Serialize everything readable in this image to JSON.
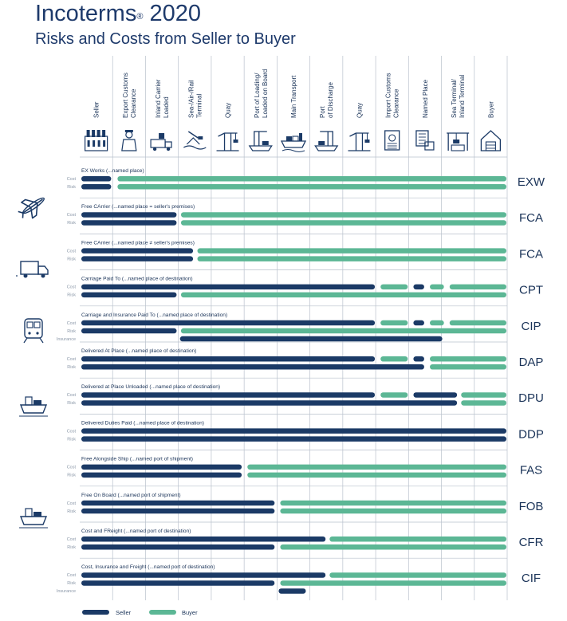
{
  "header": {
    "title": "Incoterms",
    "title_mark": "®",
    "title_year": "2020",
    "subtitle": "Risks and Costs from Seller to Buyer"
  },
  "colors": {
    "seller": "#1b3a66",
    "buyer": "#5cb795",
    "rule": "#b9c1cc",
    "text": "#1a3358"
  },
  "columns": [
    {
      "label": [
        "Seller"
      ],
      "icon": "factory-icon"
    },
    {
      "label": [
        "Export Customs",
        "Clearance"
      ],
      "icon": "customs-officer-icon"
    },
    {
      "label": [
        "Inland Carrier",
        "Loaded"
      ],
      "icon": "loading-truck-icon"
    },
    {
      "label": [
        "Sea-/Air-/Rail",
        "Terminal"
      ],
      "icon": "terminal-icon"
    },
    {
      "label": [
        "Quay"
      ],
      "icon": "port-crane-icon"
    },
    {
      "label": [
        "Port of Loading/",
        "Loaded on Board"
      ],
      "icon": "crane-ship-icon"
    },
    {
      "label": [
        "Main Transport"
      ],
      "icon": "cargo-ship-icon"
    },
    {
      "label": [
        "Port",
        "of Discharge"
      ],
      "icon": "port-discharge-icon"
    },
    {
      "label": [
        "Quay"
      ],
      "icon": "port-crane-icon"
    },
    {
      "label": [
        "Import Customs",
        "Clearance"
      ],
      "icon": "customs-document-icon"
    },
    {
      "label": [
        "Named Place"
      ],
      "icon": "checklist-icon"
    },
    {
      "label": [
        "Sea Terminal/",
        "Inland Terminal"
      ],
      "icon": "inland-terminal-icon"
    },
    {
      "label": [
        "Buyer"
      ],
      "icon": "warehouse-icon"
    }
  ],
  "side_labels": {
    "cost": "Cost",
    "risk": "Risk",
    "insurance": "Insurance"
  },
  "terms": [
    {
      "code": "EXW",
      "description": "EX Works (...named place)",
      "bars": [
        {
          "kind": "cost",
          "segments": [
            [
              "seller",
              0,
              0.98
            ],
            [
              "buyer",
              1.1,
              13
            ]
          ]
        },
        {
          "kind": "risk",
          "segments": [
            [
              "seller",
              0,
              0.98
            ],
            [
              "buyer",
              1.1,
              13
            ]
          ]
        }
      ]
    },
    {
      "code": "FCA",
      "description": "Free CArrier (...named place = seller's premises)",
      "bars": [
        {
          "kind": "cost",
          "segments": [
            [
              "seller",
              0,
              2.97
            ],
            [
              "buyer",
              3.03,
              13
            ]
          ]
        },
        {
          "kind": "risk",
          "segments": [
            [
              "seller",
              0,
              2.97
            ],
            [
              "buyer",
              3.03,
              13
            ]
          ]
        }
      ]
    },
    {
      "code": "FCA",
      "description": "Free CArrier (...named place ≠ seller's premises)",
      "bars": [
        {
          "kind": "cost",
          "segments": [
            [
              "seller",
              0,
              3.47
            ],
            [
              "buyer",
              3.53,
              13
            ]
          ]
        },
        {
          "kind": "risk",
          "segments": [
            [
              "seller",
              0,
              3.47
            ],
            [
              "buyer",
              3.53,
              13
            ]
          ]
        }
      ]
    },
    {
      "code": "CPT",
      "description": "Carriage Paid To (...named place of destination)",
      "bars": [
        {
          "kind": "cost",
          "segments": [
            [
              "seller",
              0,
              9
            ],
            [
              "buyer",
              9.1,
              10
            ],
            [
              "seller",
              10.1,
              10.5
            ],
            [
              "buyer",
              10.6,
              11.1
            ],
            [
              "buyer",
              11.2,
              13
            ]
          ]
        },
        {
          "kind": "risk",
          "segments": [
            [
              "seller",
              0,
              2.97
            ],
            [
              "buyer",
              3.03,
              13
            ]
          ]
        }
      ]
    },
    {
      "code": "CIP",
      "description": "Carriage and Insurance Paid To (...named place of destination)",
      "bars": [
        {
          "kind": "cost",
          "segments": [
            [
              "seller",
              0,
              9
            ],
            [
              "buyer",
              9.1,
              10
            ],
            [
              "seller",
              10.1,
              10.5
            ],
            [
              "buyer",
              10.6,
              11.1
            ],
            [
              "buyer",
              11.2,
              13
            ]
          ]
        },
        {
          "kind": "risk",
          "segments": [
            [
              "seller",
              0,
              2.97
            ],
            [
              "buyer",
              3.03,
              13
            ]
          ]
        },
        {
          "kind": "insurance",
          "segments": [
            [
              "seller",
              3,
              11.05
            ]
          ]
        }
      ]
    },
    {
      "code": "DAP",
      "description": "Delivered At Place (...named place of destination)",
      "bars": [
        {
          "kind": "cost",
          "segments": [
            [
              "seller",
              0,
              9
            ],
            [
              "buyer",
              9.1,
              10
            ],
            [
              "seller",
              10.1,
              10.5
            ],
            [
              "buyer",
              10.6,
              13
            ]
          ]
        },
        {
          "kind": "risk",
          "segments": [
            [
              "seller",
              0,
              10.5
            ],
            [
              "buyer",
              10.6,
              13
            ]
          ]
        }
      ]
    },
    {
      "code": "DPU",
      "description": "Delivered at Place Unloaded (...named place of destination)",
      "bars": [
        {
          "kind": "cost",
          "segments": [
            [
              "seller",
              0,
              9
            ],
            [
              "buyer",
              9.1,
              10
            ],
            [
              "seller",
              10.1,
              11.5
            ],
            [
              "buyer",
              11.55,
              13
            ]
          ]
        },
        {
          "kind": "risk",
          "segments": [
            [
              "seller",
              0,
              11.5
            ],
            [
              "buyer",
              11.55,
              13
            ]
          ]
        }
      ]
    },
    {
      "code": "DDP",
      "description": "Delivered Duties Paid (...named place of destination)",
      "bars": [
        {
          "kind": "cost",
          "segments": [
            [
              "seller",
              0,
              13
            ]
          ]
        },
        {
          "kind": "risk",
          "segments": [
            [
              "seller",
              0,
              13
            ]
          ]
        }
      ]
    },
    {
      "code": "FAS",
      "description": "Free Alongside Ship (...named port of shipment)",
      "bars": [
        {
          "kind": "cost",
          "segments": [
            [
              "seller",
              0,
              4.95
            ],
            [
              "buyer",
              5.05,
              13
            ]
          ]
        },
        {
          "kind": "risk",
          "segments": [
            [
              "seller",
              0,
              4.95
            ],
            [
              "buyer",
              5.05,
              13
            ]
          ]
        }
      ]
    },
    {
      "code": "FOB",
      "description": "Free On Board (...named port of shipment)",
      "bars": [
        {
          "kind": "cost",
          "segments": [
            [
              "seller",
              0,
              5.95
            ],
            [
              "buyer",
              6.05,
              13
            ]
          ]
        },
        {
          "kind": "risk",
          "segments": [
            [
              "seller",
              0,
              5.95
            ],
            [
              "buyer",
              6.05,
              13
            ]
          ]
        }
      ]
    },
    {
      "code": "CFR",
      "description": "Cost and FReight (...named port of destination)",
      "bars": [
        {
          "kind": "cost",
          "segments": [
            [
              "seller",
              0,
              7.5
            ],
            [
              "buyer",
              7.55,
              13
            ]
          ]
        },
        {
          "kind": "risk",
          "segments": [
            [
              "seller",
              0,
              5.95
            ],
            [
              "buyer",
              6.05,
              13
            ]
          ]
        }
      ]
    },
    {
      "code": "CIF",
      "description": "Cost, Insurance and Freight (...named port of destination)",
      "bars": [
        {
          "kind": "cost",
          "segments": [
            [
              "seller",
              0,
              7.5
            ],
            [
              "buyer",
              7.55,
              13
            ]
          ]
        },
        {
          "kind": "risk",
          "segments": [
            [
              "seller",
              0,
              5.95
            ],
            [
              "buyer",
              6.05,
              13
            ]
          ]
        },
        {
          "kind": "insurance",
          "segments": [
            [
              "seller",
              6,
              6.9
            ]
          ]
        }
      ]
    }
  ],
  "mode_icons": [
    "airplane-icon",
    "truck-icon",
    "train-icon",
    "multimodal-ship-icon",
    "sea-ship-icon"
  ],
  "legend": {
    "seller": "Seller",
    "buyer": "Buyer"
  }
}
